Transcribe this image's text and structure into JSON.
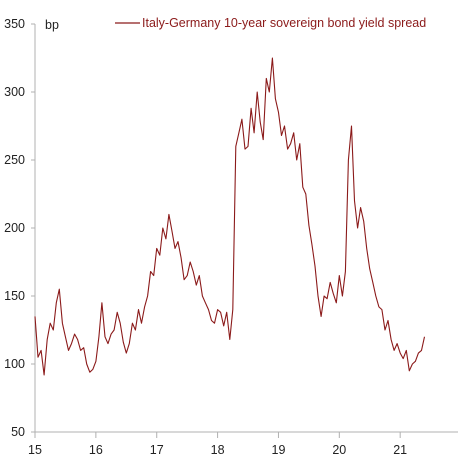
{
  "chart_data": {
    "type": "line",
    "title": "",
    "xlabel": "",
    "ylabel": "",
    "y_unit_label": "bp",
    "xlim": [
      2015.0,
      2021.95
    ],
    "ylim": [
      50,
      350
    ],
    "y_ticks": [
      50,
      100,
      150,
      200,
      250,
      300,
      350
    ],
    "x_ticks": [
      {
        "value": 2015,
        "label": "15"
      },
      {
        "value": 2016,
        "label": "16"
      },
      {
        "value": 2017,
        "label": "17"
      },
      {
        "value": 2018,
        "label": "18"
      },
      {
        "value": 2019,
        "label": "19"
      },
      {
        "value": 2020,
        "label": "20"
      },
      {
        "value": 2021,
        "label": "21"
      }
    ],
    "grid": false,
    "legend": "top",
    "colors": {
      "series": "#8b1a1a",
      "axis": "#b0b0b0",
      "text": "#222222"
    },
    "series": [
      {
        "name": "Italy-Germany 10-year sovereign bond yield spread",
        "x": [
          2015.0,
          2015.05,
          2015.1,
          2015.15,
          2015.2,
          2015.25,
          2015.3,
          2015.35,
          2015.4,
          2015.45,
          2015.5,
          2015.55,
          2015.6,
          2015.65,
          2015.7,
          2015.75,
          2015.8,
          2015.85,
          2015.9,
          2015.95,
          2016.0,
          2016.05,
          2016.1,
          2016.15,
          2016.2,
          2016.25,
          2016.3,
          2016.35,
          2016.4,
          2016.45,
          2016.5,
          2016.55,
          2016.6,
          2016.65,
          2016.7,
          2016.75,
          2016.8,
          2016.85,
          2016.9,
          2016.95,
          2017.0,
          2017.05,
          2017.1,
          2017.15,
          2017.2,
          2017.25,
          2017.3,
          2017.35,
          2017.4,
          2017.45,
          2017.5,
          2017.55,
          2017.6,
          2017.65,
          2017.7,
          2017.75,
          2017.8,
          2017.85,
          2017.9,
          2017.95,
          2018.0,
          2018.05,
          2018.1,
          2018.15,
          2018.2,
          2018.25,
          2018.3,
          2018.35,
          2018.4,
          2018.45,
          2018.5,
          2018.55,
          2018.6,
          2018.65,
          2018.7,
          2018.75,
          2018.8,
          2018.85,
          2018.9,
          2018.95,
          2019.0,
          2019.05,
          2019.1,
          2019.15,
          2019.2,
          2019.25,
          2019.3,
          2019.35,
          2019.4,
          2019.45,
          2019.5,
          2019.55,
          2019.6,
          2019.65,
          2019.7,
          2019.75,
          2019.8,
          2019.85,
          2019.9,
          2019.95,
          2020.0,
          2020.05,
          2020.1,
          2020.15,
          2020.2,
          2020.25,
          2020.3,
          2020.35,
          2020.4,
          2020.45,
          2020.5,
          2020.55,
          2020.6,
          2020.65,
          2020.7,
          2020.75,
          2020.8,
          2020.85,
          2020.9,
          2020.95,
          2021.0,
          2021.05,
          2021.1,
          2021.15,
          2021.2,
          2021.25,
          2021.3,
          2021.35,
          2021.4
        ],
        "values": [
          135,
          105,
          110,
          92,
          118,
          130,
          125,
          145,
          155,
          130,
          120,
          110,
          115,
          122,
          118,
          110,
          112,
          100,
          94,
          96,
          102,
          120,
          145,
          120,
          115,
          122,
          125,
          138,
          130,
          116,
          108,
          115,
          130,
          125,
          140,
          130,
          142,
          150,
          168,
          165,
          185,
          180,
          200,
          192,
          210,
          198,
          185,
          190,
          178,
          162,
          165,
          175,
          168,
          158,
          165,
          150,
          145,
          140,
          132,
          130,
          140,
          138,
          128,
          138,
          118,
          140,
          260,
          270,
          280,
          258,
          260,
          288,
          270,
          300,
          278,
          265,
          310,
          300,
          325,
          295,
          285,
          268,
          275,
          258,
          262,
          270,
          250,
          262,
          230,
          225,
          202,
          188,
          172,
          150,
          135,
          150,
          148,
          160,
          152,
          145,
          165,
          150,
          168,
          250,
          275,
          220,
          200,
          215,
          205,
          185,
          170,
          160,
          150,
          142,
          140,
          125,
          132,
          118,
          110,
          115,
          108,
          104,
          110,
          95,
          100,
          102,
          108,
          110,
          120
        ]
      }
    ]
  }
}
